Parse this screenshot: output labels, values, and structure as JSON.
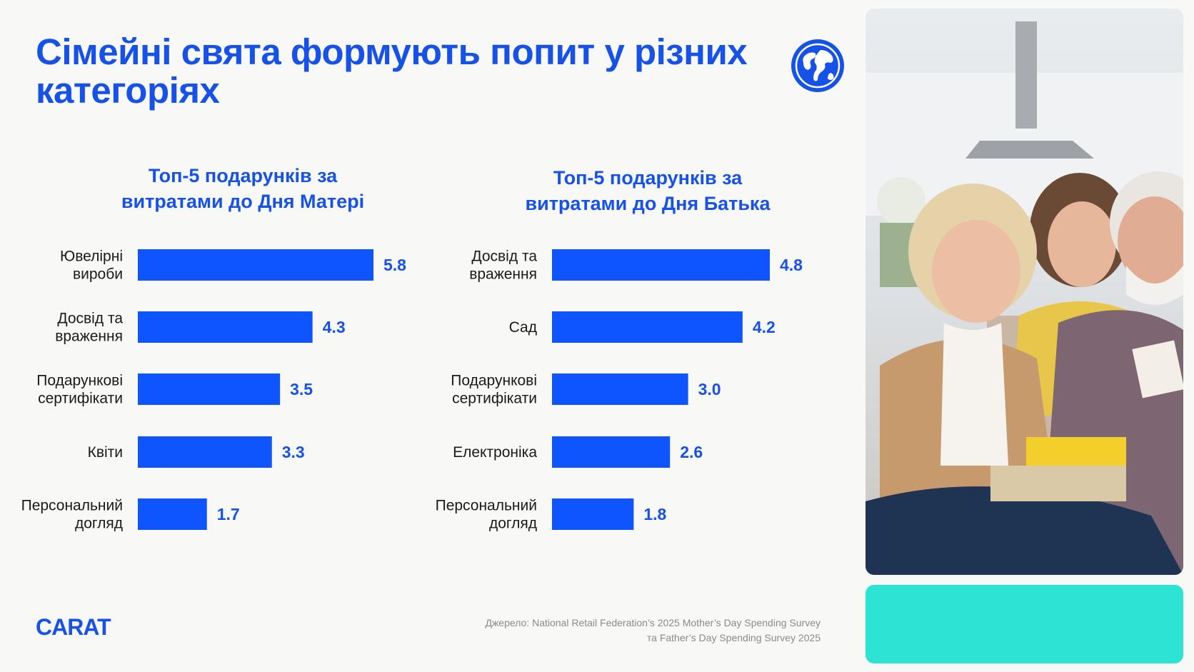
{
  "header": {
    "title": "Сімейні свята формують попит у різних категоріях",
    "globe_icon": "globe-icon"
  },
  "colors": {
    "accent": "#1652e8",
    "bar": "#0f55ff",
    "teal_panel": "#2de3d4"
  },
  "chart_data": [
    {
      "type": "bar",
      "orientation": "horizontal",
      "title": "Топ-5 подарунків за\nвитратами до Дня Матері",
      "categories": [
        "Ювелірні\nвироби",
        "Досвід та\nвраження",
        "Подарункові\nсертифікати",
        "Квіти",
        "Персональний\nдогляд"
      ],
      "values": [
        5.8,
        4.3,
        3.5,
        3.3,
        1.7
      ],
      "value_labels": [
        "5.8",
        "4.3",
        "3.5",
        "3.3",
        "1.7"
      ],
      "xlim": [
        0,
        5.8
      ],
      "grid": false,
      "legend": false
    },
    {
      "type": "bar",
      "orientation": "horizontal",
      "title": "Топ-5 подарунків за\nвитратами до Дня Батька",
      "categories": [
        "Досвід та\nвраження",
        "Сад",
        "Подарункові\nсертифікати",
        "Електроніка",
        "Персональний\nдогляд"
      ],
      "values": [
        4.8,
        4.2,
        3.0,
        2.6,
        1.8
      ],
      "value_labels": [
        "4.8",
        "4.2",
        "3.0",
        "2.6",
        "1.8"
      ],
      "xlim": [
        0,
        4.8
      ],
      "grid": false,
      "legend": false
    }
  ],
  "footer": {
    "logo": "CARAT",
    "source_line1": "Джерело: National Retail Federation’s 2025 Mother’s Day Spending Survey",
    "source_line2": "та Father’s Day Spending Survey 2025"
  },
  "photo": {
    "kind": "family-photo"
  }
}
